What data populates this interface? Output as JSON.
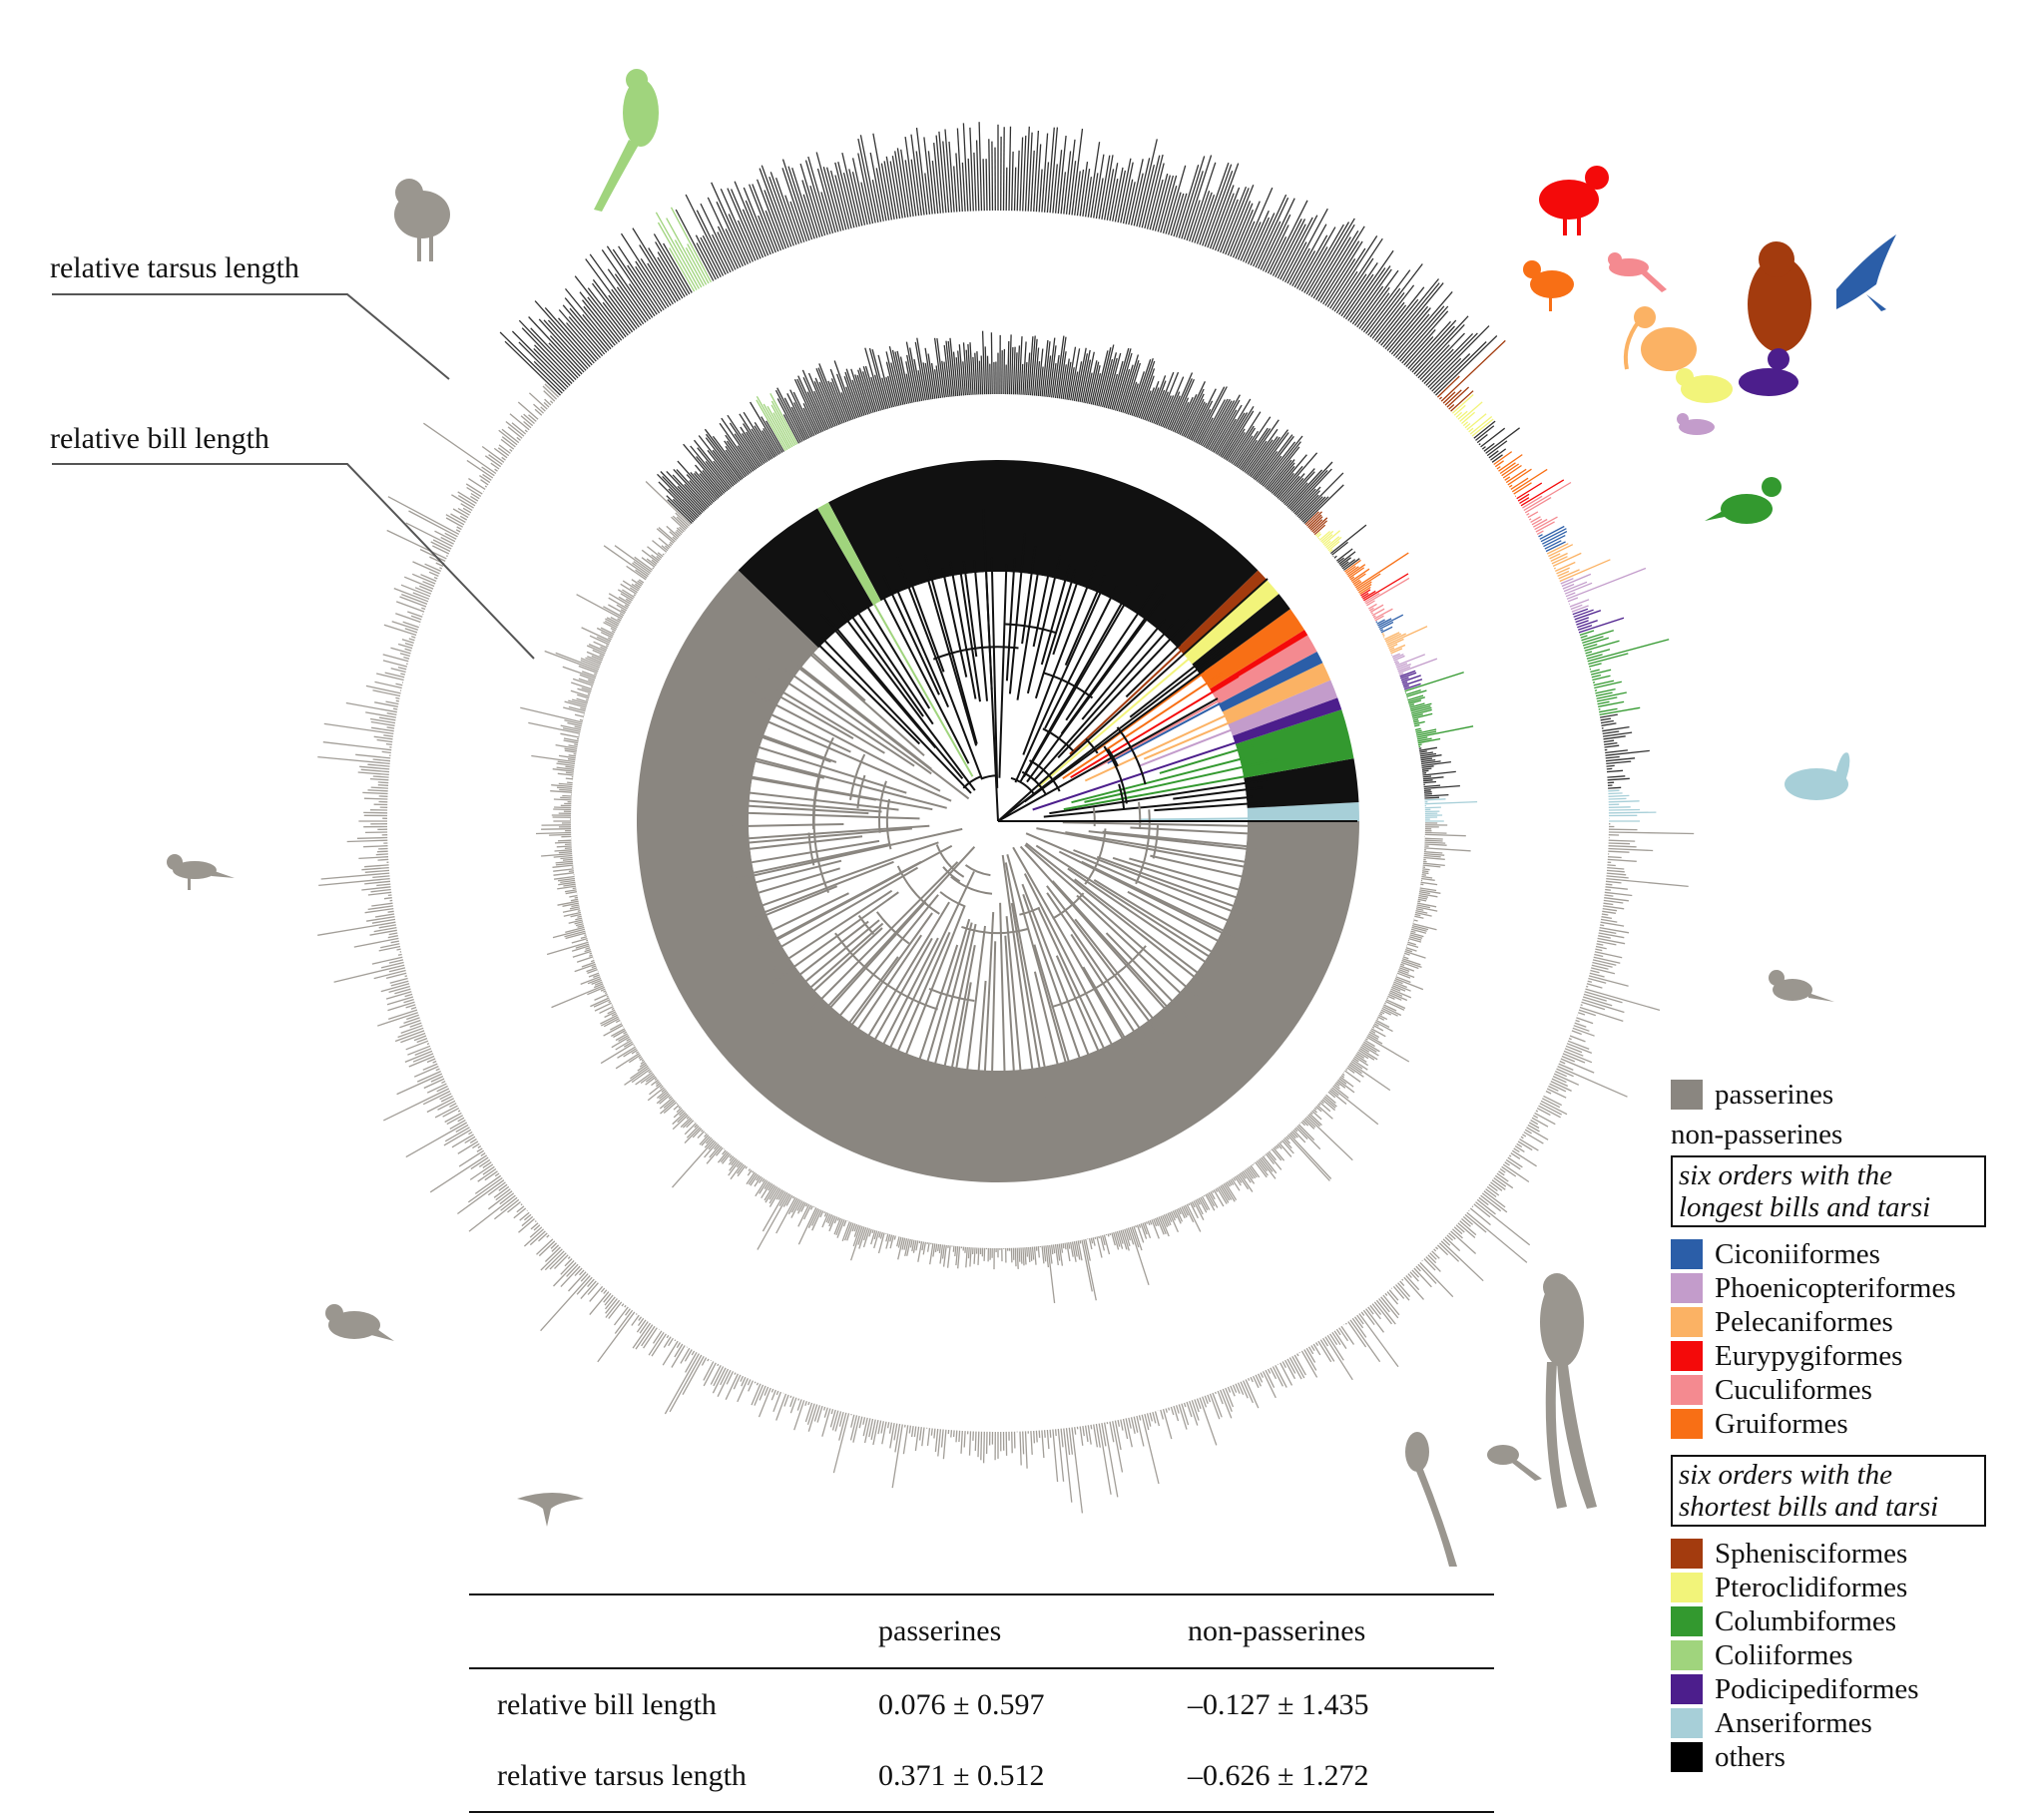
{
  "annotations": {
    "tarsus_label": "relative tarsus length",
    "bill_label": "relative bill length"
  },
  "legend": {
    "passerines": {
      "label": "passerines",
      "color": "#8a8680"
    },
    "non_passerines": "non-passerines",
    "group_long": "six orders with the longest bills and tarsi",
    "orders_long": [
      {
        "label": "Ciconiiformes",
        "color": "#2b5ea8"
      },
      {
        "label": "Phoenicopteriformes",
        "color": "#c39ccb"
      },
      {
        "label": "Pelecaniformes",
        "color": "#fbb264"
      },
      {
        "label": "Eurypygiformes",
        "color": "#f40a0a"
      },
      {
        "label": "Cuculiformes",
        "color": "#f48a90"
      },
      {
        "label": "Gruiformes",
        "color": "#f86f15"
      }
    ],
    "group_short": "six orders with the shortest bills and tarsi",
    "orders_short": [
      {
        "label": "Sphenisciformes",
        "color": "#a33b0e"
      },
      {
        "label": "Pteroclidiformes",
        "color": "#f2f47a"
      },
      {
        "label": "Columbiformes",
        "color": "#33992f"
      },
      {
        "label": "Coliiformes",
        "color": "#a0d47d"
      },
      {
        "label": "Podicipediformes",
        "color": "#4c1e8c"
      },
      {
        "label": "Anseriformes",
        "color": "#a7cfd8"
      },
      {
        "label": "others",
        "color": "#000000"
      }
    ]
  },
  "table": {
    "col_passerines": "passerines",
    "col_non_passerines": "non-passerines",
    "rows": [
      {
        "label": "relative bill length",
        "passerines": "0.076 ± 0.597",
        "non_passerines": "–0.127 ± 1.435"
      },
      {
        "label": "relative tarsus length",
        "passerines": "0.371 ± 0.512",
        "non_passerines": "–0.626 ± 1.272"
      }
    ]
  },
  "colors": {
    "passerine_gray": "#8a8680",
    "others_black": "#111111",
    "silhouette_gray": "#9a968f"
  }
}
